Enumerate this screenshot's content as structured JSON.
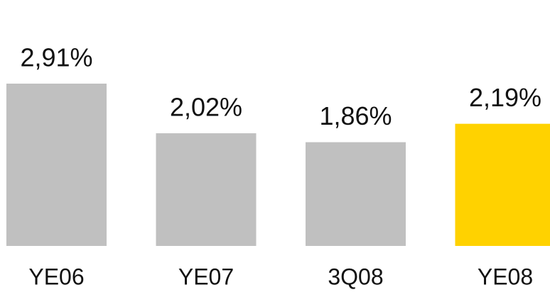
{
  "chart_data": {
    "type": "bar",
    "categories": [
      "YE06",
      "YE07",
      "3Q08",
      "YE08"
    ],
    "values": [
      2.91,
      2.02,
      1.86,
      2.19
    ],
    "value_labels": [
      "2,91%",
      "2,02%",
      "1,86%",
      "2,19%"
    ],
    "colors": [
      "#c0c0c0",
      "#c0c0c0",
      "#c0c0c0",
      "#ffd200"
    ]
  }
}
